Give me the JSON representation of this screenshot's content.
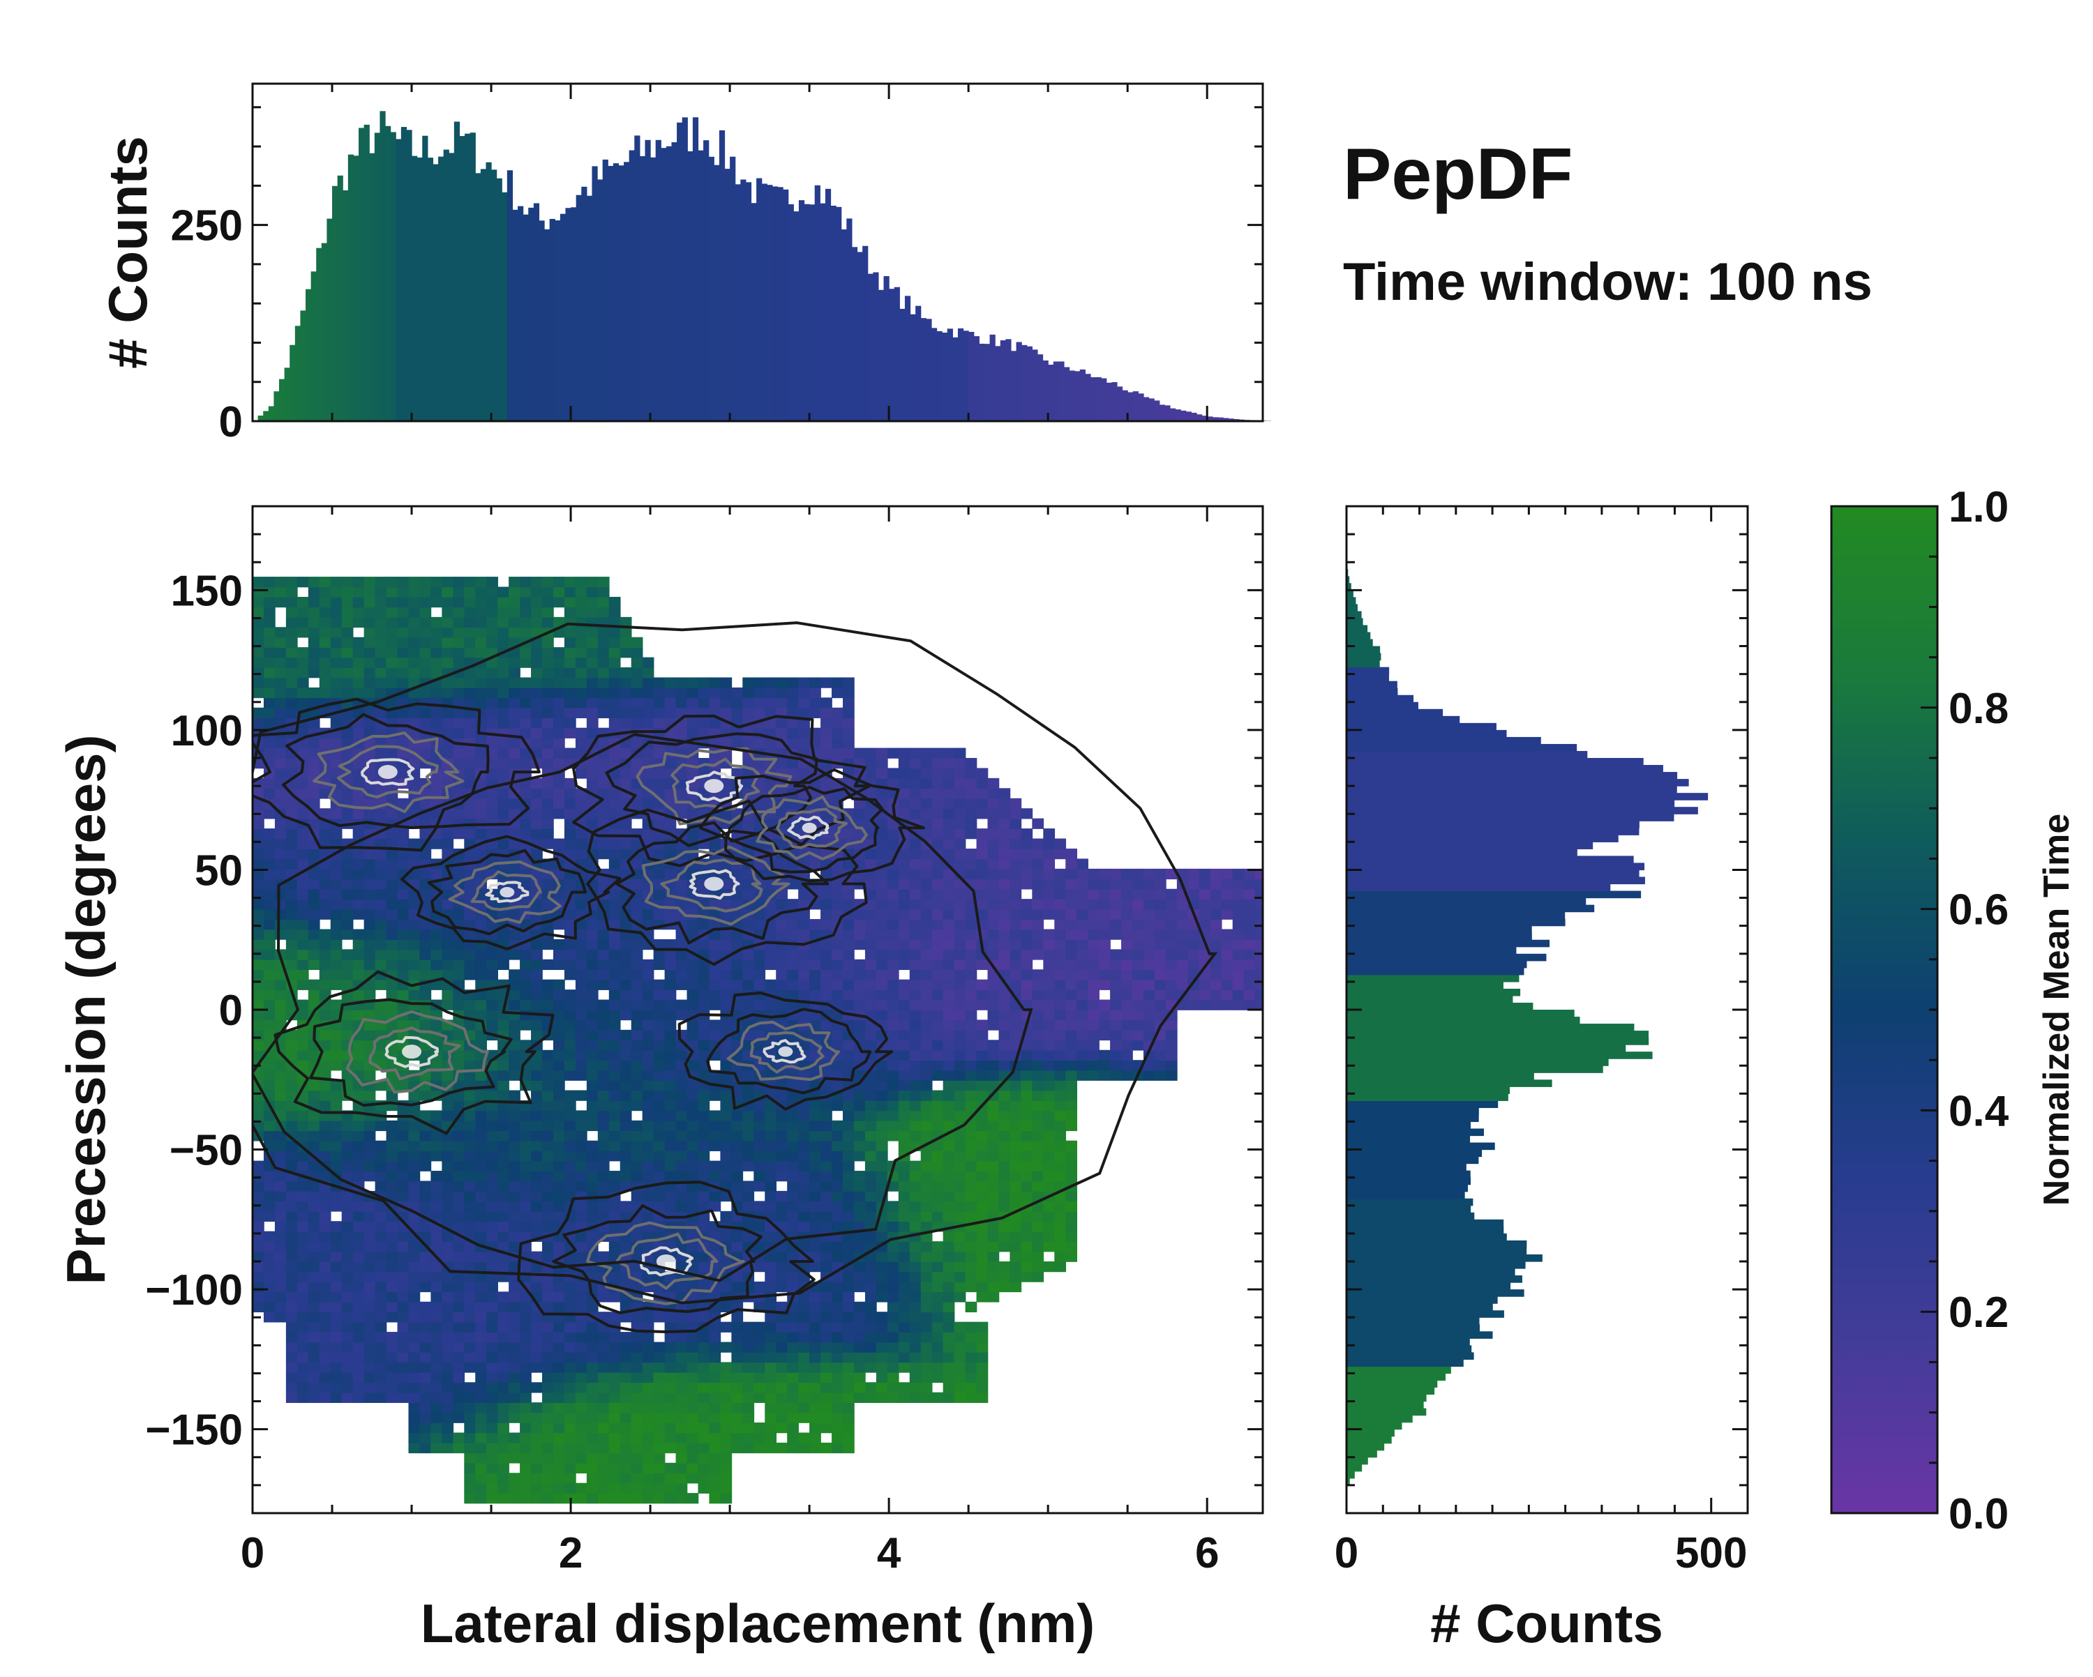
{
  "title": "PepDF",
  "subtitle": "Time window: 100 ns",
  "colors": {
    "stops": [
      "#6a35a6",
      "#433c99",
      "#283c8f",
      "#0e4071",
      "#0f5c5c",
      "#1a7a3c",
      "#228a22"
    ],
    "contour_dark": "#1a1a1a",
    "contour_mid": "#6f6f6f",
    "contour_light": "#d9d9d9",
    "axis": "#111111"
  },
  "chart_data": [
    {
      "id": "top_histogram",
      "type": "bar",
      "xlim": [
        0,
        6.35
      ],
      "ylim": [
        0,
        430
      ],
      "ylabel": "# Counts",
      "yticks": [
        {
          "value": 0,
          "label": "0"
        },
        {
          "value": 250,
          "label": "250"
        }
      ],
      "bins": [
        [
          0.0,
          0
        ],
        [
          0.1,
          20
        ],
        [
          0.2,
          70
        ],
        [
          0.3,
          140
        ],
        [
          0.4,
          210
        ],
        [
          0.5,
          290
        ],
        [
          0.6,
          330
        ],
        [
          0.7,
          360
        ],
        [
          0.8,
          370
        ],
        [
          0.9,
          355
        ],
        [
          1.0,
          345
        ],
        [
          1.1,
          345
        ],
        [
          1.2,
          350
        ],
        [
          1.3,
          360
        ],
        [
          1.4,
          340
        ],
        [
          1.5,
          320
        ],
        [
          1.6,
          300
        ],
        [
          1.7,
          270
        ],
        [
          1.8,
          255
        ],
        [
          1.9,
          265
        ],
        [
          2.0,
          280
        ],
        [
          2.1,
          300
        ],
        [
          2.2,
          315
        ],
        [
          2.3,
          325
        ],
        [
          2.4,
          340
        ],
        [
          2.5,
          350
        ],
        [
          2.6,
          360
        ],
        [
          2.7,
          365
        ],
        [
          2.8,
          370
        ],
        [
          2.9,
          350
        ],
        [
          3.0,
          330
        ],
        [
          3.1,
          300
        ],
        [
          3.2,
          285
        ],
        [
          3.3,
          280
        ],
        [
          3.4,
          290
        ],
        [
          3.5,
          300
        ],
        [
          3.6,
          285
        ],
        [
          3.7,
          255
        ],
        [
          3.8,
          220
        ],
        [
          3.9,
          190
        ],
        [
          4.0,
          165
        ],
        [
          4.1,
          150
        ],
        [
          4.2,
          130
        ],
        [
          4.3,
          120
        ],
        [
          4.4,
          115
        ],
        [
          4.5,
          110
        ],
        [
          4.6,
          105
        ],
        [
          4.7,
          100
        ],
        [
          4.8,
          95
        ],
        [
          4.9,
          85
        ],
        [
          5.0,
          75
        ],
        [
          5.1,
          70
        ],
        [
          5.2,
          62
        ],
        [
          5.3,
          55
        ],
        [
          5.4,
          48
        ],
        [
          5.5,
          38
        ],
        [
          5.6,
          30
        ],
        [
          5.7,
          22
        ],
        [
          5.8,
          15
        ],
        [
          5.9,
          10
        ],
        [
          6.0,
          6
        ],
        [
          6.1,
          4
        ],
        [
          6.2,
          2
        ],
        [
          6.3,
          1
        ]
      ],
      "bin_width": 0.1
    },
    {
      "id": "main_scatter_density",
      "type": "heatmap",
      "xlabel": "Lateral displacement (nm)",
      "ylabel": "Precession (degrees)",
      "xlim": [
        0,
        6.35
      ],
      "ylim": [
        -180,
        180
      ],
      "xticks": [
        {
          "value": 0,
          "label": "0"
        },
        {
          "value": 2,
          "label": "2"
        },
        {
          "value": 4,
          "label": "4"
        },
        {
          "value": 6,
          "label": "6"
        }
      ],
      "yticks": [
        {
          "value": 150,
          "label": "150"
        },
        {
          "value": 100,
          "label": "100"
        },
        {
          "value": 50,
          "label": "50"
        },
        {
          "value": 0,
          "label": "0"
        },
        {
          "value": -50,
          "label": "−50"
        },
        {
          "value": -100,
          "label": "−100"
        },
        {
          "value": -150,
          "label": "−150"
        }
      ],
      "grid": false,
      "color_by": "Normalized Mean Time",
      "density_peaks": [
        {
          "x": 0.85,
          "y": 85,
          "count": "high"
        },
        {
          "x": 2.9,
          "y": 80,
          "count": "high"
        },
        {
          "x": 2.9,
          "y": 45,
          "count": "high"
        },
        {
          "x": 1.6,
          "y": 42,
          "count": "medium"
        },
        {
          "x": 1.0,
          "y": -15,
          "count": "high"
        },
        {
          "x": 3.35,
          "y": -15,
          "count": "medium"
        },
        {
          "x": 2.6,
          "y": -90,
          "count": "high"
        },
        {
          "x": 3.5,
          "y": 65,
          "count": "medium"
        }
      ]
    },
    {
      "id": "right_histogram",
      "type": "bar",
      "orientation": "horizontal",
      "xlabel": "# Counts",
      "xlim": [
        0,
        550
      ],
      "ylim": [
        -180,
        180
      ],
      "xticks": [
        {
          "value": 0,
          "label": "0"
        },
        {
          "value": 500,
          "label": "500"
        }
      ],
      "bins": [
        [
          -170,
          5
        ],
        [
          -165,
          20
        ],
        [
          -160,
          40
        ],
        [
          -155,
          60
        ],
        [
          -150,
          80
        ],
        [
          -145,
          100
        ],
        [
          -140,
          115
        ],
        [
          -135,
          130
        ],
        [
          -130,
          145
        ],
        [
          -125,
          160
        ],
        [
          -120,
          175
        ],
        [
          -115,
          190
        ],
        [
          -110,
          205
        ],
        [
          -105,
          225
        ],
        [
          -100,
          240
        ],
        [
          -95,
          250
        ],
        [
          -90,
          245
        ],
        [
          -85,
          230
        ],
        [
          -80,
          210
        ],
        [
          -75,
          190
        ],
        [
          -70,
          175
        ],
        [
          -65,
          165
        ],
        [
          -60,
          170
        ],
        [
          -55,
          180
        ],
        [
          -50,
          185
        ],
        [
          -45,
          175
        ],
        [
          -40,
          180
        ],
        [
          -35,
          205
        ],
        [
          -30,
          240
        ],
        [
          -25,
          285
        ],
        [
          -20,
          355
        ],
        [
          -15,
          415
        ],
        [
          -10,
          400
        ],
        [
          -5,
          330
        ],
        [
          0,
          240
        ],
        [
          5,
          235
        ],
        [
          10,
          240
        ],
        [
          15,
          250
        ],
        [
          20,
          250
        ],
        [
          25,
          260
        ],
        [
          30,
          275
        ],
        [
          35,
          335
        ],
        [
          40,
          370
        ],
        [
          45,
          380
        ],
        [
          50,
          375
        ],
        [
          55,
          345
        ],
        [
          60,
          355
        ],
        [
          65,
          400
        ],
        [
          70,
          455
        ],
        [
          75,
          480
        ],
        [
          80,
          500
        ],
        [
          85,
          440
        ],
        [
          90,
          350
        ],
        [
          95,
          270
        ],
        [
          100,
          190
        ],
        [
          105,
          130
        ],
        [
          110,
          85
        ],
        [
          115,
          65
        ],
        [
          120,
          55
        ],
        [
          125,
          45
        ],
        [
          130,
          40
        ],
        [
          135,
          30
        ],
        [
          140,
          20
        ],
        [
          145,
          12
        ],
        [
          150,
          6
        ],
        [
          155,
          2
        ]
      ],
      "bin_width": 5
    },
    {
      "id": "colorbar",
      "type": "colorbar",
      "label": "Normalized Mean Time",
      "range": [
        0,
        1
      ],
      "ticks": [
        {
          "value": 0.0,
          "label": "0.0"
        },
        {
          "value": 0.2,
          "label": "0.2"
        },
        {
          "value": 0.4,
          "label": "0.4"
        },
        {
          "value": 0.6,
          "label": "0.6"
        },
        {
          "value": 0.8,
          "label": "0.8"
        },
        {
          "value": 1.0,
          "label": "1.0"
        }
      ]
    }
  ]
}
